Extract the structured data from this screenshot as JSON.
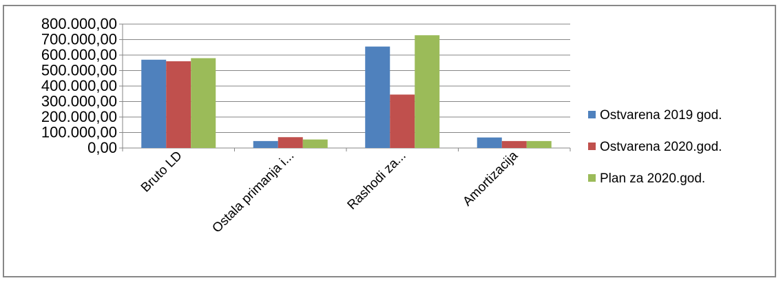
{
  "chart_data": {
    "type": "bar",
    "categories": [
      "Bruto LD",
      "Ostala primanja i...",
      "Rashodi za...",
      "Amortizacija"
    ],
    "series": [
      {
        "name": "Ostvarena 2019 god.",
        "values": [
          570000,
          45000,
          655000,
          68000
        ],
        "color": "#4F81BD"
      },
      {
        "name": "Ostvarena 2020.god.",
        "values": [
          560000,
          70000,
          345000,
          45000
        ],
        "color": "#C0504D"
      },
      {
        "name": "Plan za 2020.god.",
        "values": [
          580000,
          55000,
          728000,
          45000
        ],
        "color": "#9BBB59"
      }
    ],
    "yticks": [
      "0,00",
      "100.000,00",
      "200.000,00",
      "300.000,00",
      "400.000,00",
      "500.000,00",
      "600.000,00",
      "700.000,00",
      "800.000,00"
    ],
    "ylim": [
      0,
      800000
    ],
    "ytick_step": 100000,
    "grid": true,
    "legend_position": "right"
  }
}
